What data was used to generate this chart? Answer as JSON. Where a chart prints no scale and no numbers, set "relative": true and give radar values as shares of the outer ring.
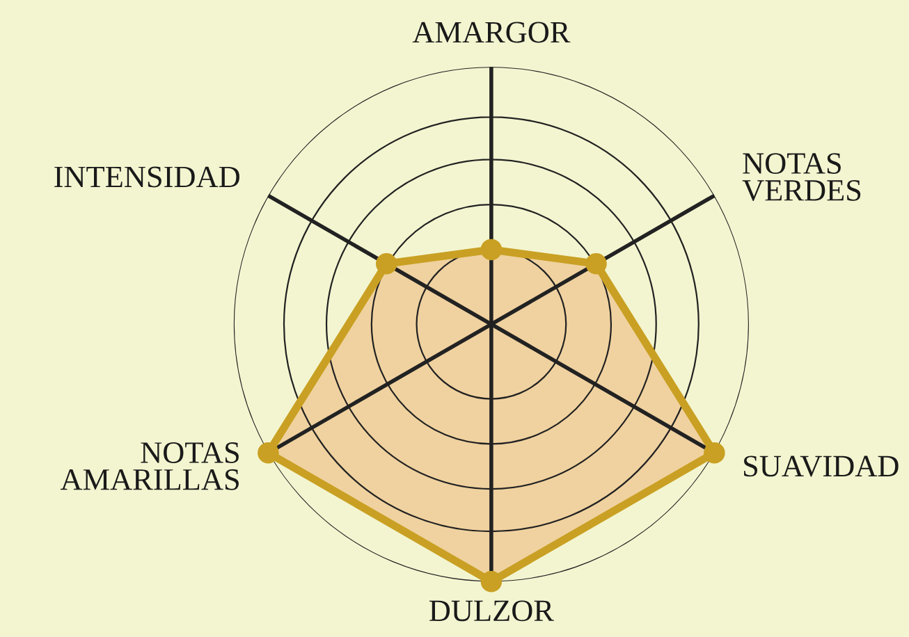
{
  "chart_data": {
    "type": "radar",
    "relative": true,
    "grid": true,
    "marker": "circle",
    "line_style": "solid",
    "categories": [
      "AMARGOR",
      "NOTAS\nVERDES",
      "SUAVIDAD",
      "DULZOR",
      "NOTAS\nAMARILLAS",
      "INTENSIDAD"
    ],
    "series": [
      {
        "color": "#c9a023",
        "values": [
          0.29,
          0.47,
          1,
          1,
          1,
          0.47
        ]
      }
    ]
  }
}
